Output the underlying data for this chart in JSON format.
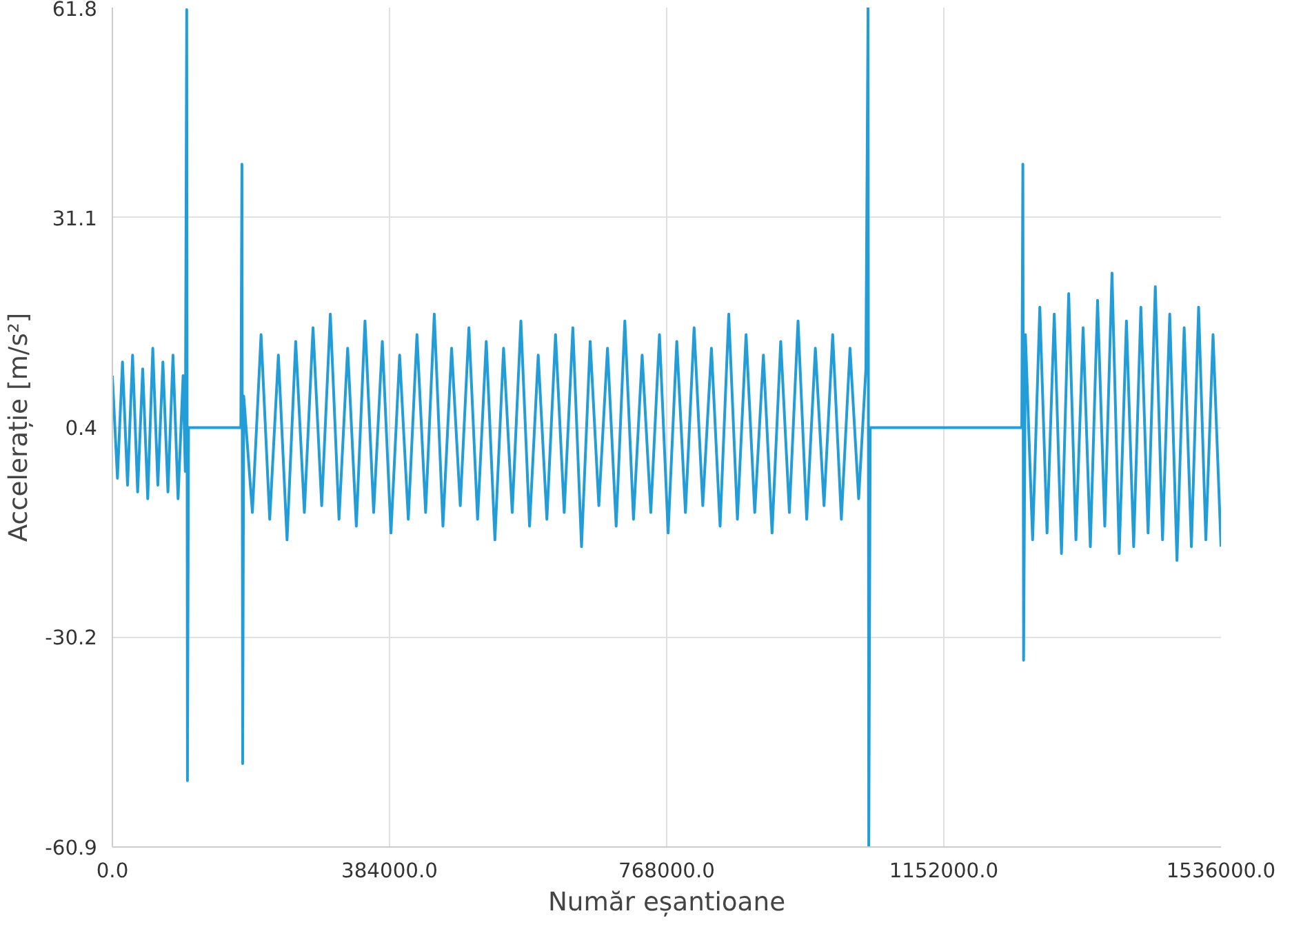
{
  "chart_data": {
    "type": "line",
    "xlabel": "Număr eșantioane",
    "ylabel": "Accelerație [m/s²]",
    "xlim": [
      0,
      1536000
    ],
    "ylim": [
      -60.9,
      61.8
    ],
    "xticks": [
      {
        "value": 0,
        "label": "0.0"
      },
      {
        "value": 384000,
        "label": "384000.0"
      },
      {
        "value": 768000,
        "label": "768000.0"
      },
      {
        "value": 1152000,
        "label": "1152000.0"
      },
      {
        "value": 1536000,
        "label": "1536000.0"
      }
    ],
    "yticks": [
      -60.9,
      -30.2,
      0.4,
      31.1,
      61.8
    ],
    "grid": true,
    "marker": "none",
    "line_style": "solid",
    "series": [
      {
        "color": "#229dd8",
        "x": [
          0,
          7000,
          14000,
          21000,
          28000,
          35000,
          42000,
          49000,
          56000,
          63000,
          70000,
          77000,
          84000,
          91000,
          98000,
          101000,
          103000,
          104000,
          105500,
          178000,
          179500,
          180500,
          182000,
          194000,
          206000,
          218000,
          230000,
          242000,
          254000,
          266000,
          278000,
          290000,
          302000,
          314000,
          326000,
          338000,
          350000,
          362000,
          374000,
          386000,
          398000,
          410000,
          422000,
          434000,
          446000,
          458000,
          470000,
          482000,
          494000,
          506000,
          518000,
          530000,
          542000,
          554000,
          566000,
          578000,
          590000,
          602000,
          614000,
          626000,
          638000,
          650000,
          662000,
          674000,
          686000,
          698000,
          710000,
          722000,
          734000,
          746000,
          758000,
          770000,
          782000,
          794000,
          806000,
          818000,
          830000,
          842000,
          854000,
          866000,
          878000,
          890000,
          902000,
          914000,
          926000,
          938000,
          950000,
          962000,
          974000,
          986000,
          998000,
          1010000,
          1022000,
          1034000,
          1044000,
          1047000,
          1048000,
          1050000,
          1260000,
          1261500,
          1262500,
          1265000,
          1275000,
          1285000,
          1295000,
          1305000,
          1315000,
          1325000,
          1335000,
          1345000,
          1355000,
          1365000,
          1375000,
          1385000,
          1395000,
          1405000,
          1415000,
          1425000,
          1435000,
          1445000,
          1455000,
          1465000,
          1475000,
          1485000,
          1495000,
          1505000,
          1515000,
          1525000,
          1536000
        ],
        "values": [
          8,
          -7,
          10,
          -8,
          11,
          -9,
          9,
          -10,
          12,
          -8,
          10,
          -9,
          11,
          -10,
          8,
          -6,
          61.5,
          -51.2,
          0.4,
          0.4,
          38.9,
          -48.7,
          5,
          -12,
          14,
          -13,
          11,
          -16,
          13,
          -12,
          15,
          -11,
          17,
          -13,
          12,
          -14,
          16,
          -12,
          13,
          -15,
          11,
          -13,
          14,
          -12,
          17,
          -14,
          12,
          -11,
          15,
          -13,
          13,
          -16,
          12,
          -12,
          16,
          -14,
          11,
          -13,
          14,
          -12,
          15,
          -17,
          13,
          -11,
          12,
          -14,
          16,
          -13,
          11,
          -12,
          14,
          -15,
          13,
          -12,
          15,
          -11,
          12,
          -14,
          17,
          -13,
          14,
          -12,
          11,
          -15,
          13,
          -12,
          16,
          -13,
          12,
          -11,
          14,
          -13,
          12,
          -10,
          9,
          61.8,
          -60.9,
          0.4,
          0.4,
          38.9,
          -33.6,
          14,
          -16,
          18,
          -15,
          17,
          -18,
          20,
          -16,
          15,
          -17,
          19,
          -14,
          23,
          -18,
          16,
          -17,
          18,
          -15,
          21,
          -16,
          17,
          -19,
          15,
          -17,
          18,
          -16,
          14,
          -17
        ]
      }
    ]
  }
}
